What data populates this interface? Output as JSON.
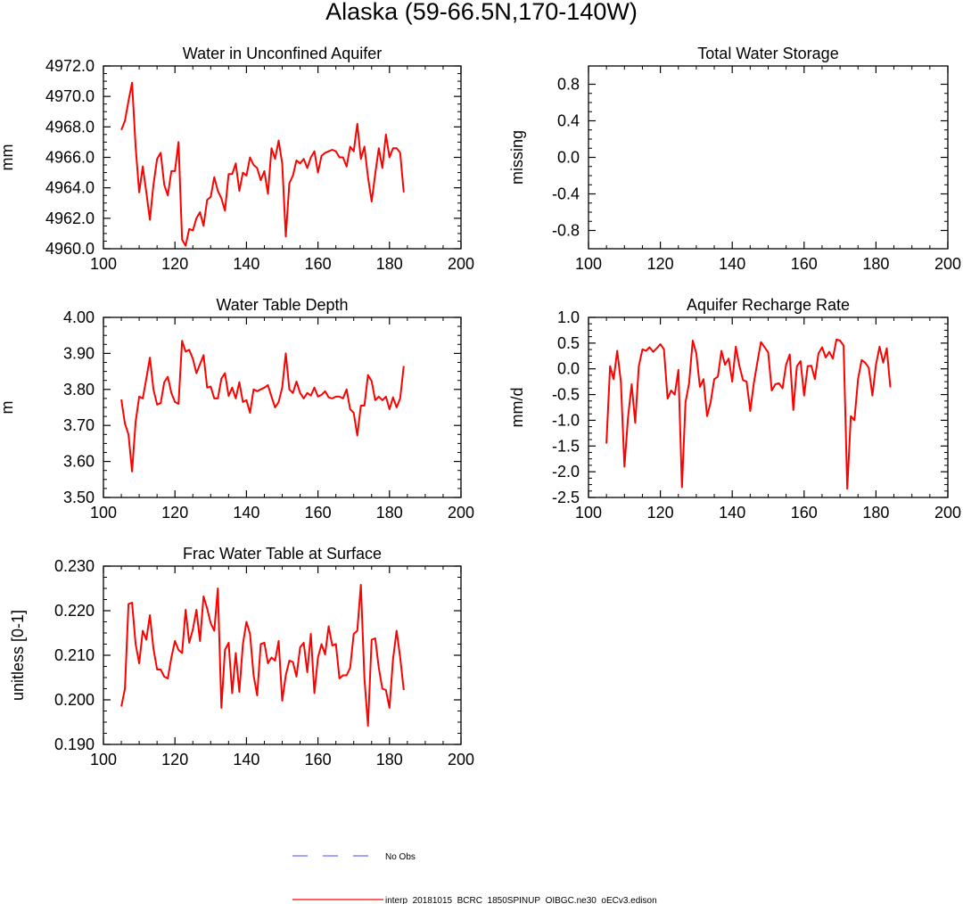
{
  "page_title": "Alaska (59-66.5N,170-140W)",
  "colors": {
    "model": "#ff0000",
    "obs": "#6b6bff",
    "axis": "#000000"
  },
  "legend": {
    "obs_label": "No Obs",
    "model_label": "interp_20181015_BCRC_1850SPINUP_OIBGC.ne30_oECv3.edison"
  },
  "chart_data": [
    {
      "id": "water-in-unconfined-aquifer",
      "type": "line",
      "title": "Water in Unconfined Aquifer",
      "xlabel": "",
      "ylabel": "mm",
      "xlim": [
        100,
        200
      ],
      "ylim": [
        4960.0,
        4972.0
      ],
      "xticks": [
        100,
        120,
        140,
        160,
        180,
        200
      ],
      "xtick_labels": [
        "100",
        "120",
        "140",
        "160",
        "180",
        "200"
      ],
      "yticks": [
        4960,
        4962,
        4964,
        4966,
        4968,
        4970,
        4972
      ],
      "ytick_labels": [
        "4960.0",
        "4962.0",
        "4964.0",
        "4966.0",
        "4968.0",
        "4970.0",
        "4972.0"
      ],
      "series": [
        {
          "name": "interp_20181015_BCRC_1850SPINUP_OIBGC.ne30_oECv3.edison",
          "x": [
            105,
            106,
            107,
            108,
            109,
            110,
            111,
            112,
            113,
            114,
            115,
            116,
            117,
            118,
            119,
            120,
            121,
            122,
            123,
            124,
            125,
            126,
            127,
            128,
            129,
            130,
            131,
            132,
            133,
            134,
            135,
            136,
            137,
            138,
            139,
            140,
            141,
            142,
            143,
            144,
            145,
            146,
            147,
            148,
            149,
            150,
            151,
            152,
            153,
            154,
            155,
            156,
            157,
            158,
            159,
            160,
            161,
            162,
            163,
            164,
            165,
            166,
            167,
            168,
            169,
            170,
            171,
            172,
            173,
            174,
            175,
            176,
            177,
            178,
            179,
            180,
            181,
            182,
            183,
            184
          ],
          "values": [
            4967.8,
            4968.4,
            4969.7,
            4970.9,
            4966.7,
            4963.7,
            4965.4,
            4963.7,
            4961.9,
            4964.2,
            4965.9,
            4966.3,
            4964.2,
            4963.5,
            4965.1,
            4965.1,
            4967.0,
            4960.6,
            4960.2,
            4961.3,
            4961.2,
            4962.0,
            4962.4,
            4961.5,
            4963.2,
            4963.4,
            4964.7,
            4963.8,
            4963.3,
            4962.5,
            4964.9,
            4964.9,
            4965.6,
            4963.8,
            4965.0,
            4964.8,
            4966.0,
            4965.5,
            4965.3,
            4964.5,
            4965.1,
            4963.6,
            4966.6,
            4965.9,
            4967.1,
            4965.6,
            4960.8,
            4964.3,
            4964.8,
            4965.8,
            4965.6,
            4965.9,
            4965.3,
            4966.0,
            4966.4,
            4965.0,
            4966.1,
            4966.3,
            4966.4,
            4966.5,
            4966.4,
            4966.0,
            4966.0,
            4965.4,
            4966.7,
            4966.4,
            4968.2,
            4965.9,
            4966.7,
            4964.7,
            4963.1,
            4964.9,
            4966.6,
            4965.3,
            4967.5,
            4966.0,
            4966.6,
            4966.6,
            4966.3,
            4963.7
          ]
        }
      ]
    },
    {
      "id": "total-water-storage",
      "type": "line",
      "title": "Total Water Storage",
      "xlabel": "",
      "ylabel": "missing",
      "xlim": [
        100,
        200
      ],
      "ylim": [
        -1.0,
        1.0
      ],
      "xticks": [
        100,
        120,
        140,
        160,
        180,
        200
      ],
      "xtick_labels": [
        "100",
        "120",
        "140",
        "160",
        "180",
        "200"
      ],
      "yticks": [
        -0.8,
        -0.4,
        0.0,
        0.4,
        0.8
      ],
      "ytick_labels": [
        "-0.8",
        "-0.4",
        "0.0",
        "0.4",
        "0.8"
      ],
      "series": []
    },
    {
      "id": "water-table-depth",
      "type": "line",
      "title": "Water Table Depth",
      "xlabel": "",
      "ylabel": "m",
      "xlim": [
        100,
        200
      ],
      "ylim": [
        3.5,
        4.0
      ],
      "xticks": [
        100,
        120,
        140,
        160,
        180,
        200
      ],
      "xtick_labels": [
        "100",
        "120",
        "140",
        "160",
        "180",
        "200"
      ],
      "yticks": [
        3.5,
        3.6,
        3.7,
        3.8,
        3.9,
        4.0
      ],
      "ytick_labels": [
        "3.50",
        "3.60",
        "3.70",
        "3.80",
        "3.90",
        "4.00"
      ],
      "series": [
        {
          "name": "interp_20181015_BCRC_1850SPINUP_OIBGC.ne30_oECv3.edison",
          "x": [
            105,
            106,
            107,
            108,
            109,
            110,
            111,
            112,
            113,
            114,
            115,
            116,
            117,
            118,
            119,
            120,
            121,
            122,
            123,
            124,
            125,
            126,
            127,
            128,
            129,
            130,
            131,
            132,
            133,
            134,
            135,
            136,
            137,
            138,
            139,
            140,
            141,
            142,
            143,
            144,
            145,
            146,
            147,
            148,
            149,
            150,
            151,
            152,
            153,
            154,
            155,
            156,
            157,
            158,
            159,
            160,
            161,
            162,
            163,
            164,
            165,
            166,
            167,
            168,
            169,
            170,
            171,
            172,
            173,
            174,
            175,
            176,
            177,
            178,
            179,
            180,
            181,
            182,
            183,
            184
          ],
          "values": [
            3.772,
            3.705,
            3.675,
            3.572,
            3.71,
            3.78,
            3.775,
            3.83,
            3.888,
            3.8,
            3.758,
            3.762,
            3.82,
            3.835,
            3.79,
            3.765,
            3.76,
            3.935,
            3.905,
            3.91,
            3.885,
            3.845,
            3.87,
            3.895,
            3.805,
            3.808,
            3.775,
            3.775,
            3.83,
            3.845,
            3.782,
            3.805,
            3.775,
            3.82,
            3.765,
            3.77,
            3.735,
            3.8,
            3.795,
            3.8,
            3.805,
            3.812,
            3.78,
            3.75,
            3.765,
            3.805,
            3.9,
            3.8,
            3.79,
            3.822,
            3.79,
            3.775,
            3.79,
            3.783,
            3.805,
            3.78,
            3.785,
            3.795,
            3.778,
            3.775,
            3.78,
            3.78,
            3.775,
            3.8,
            3.745,
            3.735,
            3.672,
            3.755,
            3.755,
            3.84,
            3.823,
            3.77,
            3.78,
            3.77,
            3.78,
            3.745,
            3.778,
            3.75,
            3.775,
            3.865
          ]
        }
      ]
    },
    {
      "id": "aquifer-recharge-rate",
      "type": "line",
      "title": "Aquifer Recharge Rate",
      "xlabel": "",
      "ylabel": "mm/d",
      "xlim": [
        100,
        200
      ],
      "ylim": [
        -2.5,
        1.0
      ],
      "xticks": [
        100,
        120,
        140,
        160,
        180,
        200
      ],
      "xtick_labels": [
        "100",
        "120",
        "140",
        "160",
        "180",
        "200"
      ],
      "yticks": [
        -2.5,
        -2.0,
        -1.5,
        -1.0,
        -0.5,
        0.0,
        0.5,
        1.0
      ],
      "ytick_labels": [
        "-2.5",
        "-2.0",
        "-1.5",
        "-1.0",
        "-0.5",
        "0.0",
        "0.5",
        "1.0"
      ],
      "series": [
        {
          "name": "interp_20181015_BCRC_1850SPINUP_OIBGC.ne30_oECv3.edison",
          "x": [
            105,
            106,
            107,
            108,
            109,
            110,
            111,
            112,
            113,
            114,
            115,
            116,
            117,
            118,
            119,
            120,
            121,
            122,
            123,
            124,
            125,
            126,
            127,
            128,
            129,
            130,
            131,
            132,
            133,
            134,
            135,
            136,
            137,
            138,
            139,
            140,
            141,
            142,
            143,
            144,
            145,
            146,
            147,
            148,
            149,
            150,
            151,
            152,
            153,
            154,
            155,
            156,
            157,
            158,
            159,
            160,
            161,
            162,
            163,
            164,
            165,
            166,
            167,
            168,
            169,
            170,
            171,
            172,
            173,
            174,
            175,
            176,
            177,
            178,
            179,
            180,
            181,
            182,
            183,
            184
          ],
          "values": [
            -1.45,
            0.05,
            -0.2,
            0.35,
            -0.25,
            -1.9,
            -0.95,
            -0.3,
            -1.05,
            0.05,
            0.38,
            0.35,
            0.42,
            0.33,
            0.4,
            0.48,
            0.38,
            -0.58,
            -0.42,
            -0.5,
            -0.02,
            -2.3,
            -0.65,
            -0.28,
            0.55,
            0.3,
            -0.35,
            -0.2,
            -0.92,
            -0.65,
            -0.2,
            -0.15,
            0.35,
            0.08,
            0.2,
            -0.25,
            0.43,
            0.05,
            -0.22,
            -0.25,
            -0.82,
            -0.28,
            0.13,
            0.52,
            0.42,
            0.32,
            -0.42,
            -0.3,
            -0.28,
            -0.38,
            0.08,
            0.28,
            -0.8,
            0.05,
            0.15,
            -0.52,
            0.05,
            0.06,
            -0.2,
            0.3,
            0.42,
            0.22,
            0.33,
            0.2,
            0.57,
            0.55,
            0.45,
            -2.33,
            -0.92,
            -1.0,
            -0.2,
            0.17,
            0.12,
            0.02,
            -0.52,
            0.08,
            0.43,
            0.12,
            0.4,
            -0.36
          ]
        }
      ]
    },
    {
      "id": "frac-water-table-at-surface",
      "type": "line",
      "title": "Frac Water Table at Surface",
      "xlabel": "",
      "ylabel": "unitless [0-1]",
      "xlim": [
        100,
        200
      ],
      "ylim": [
        0.19,
        0.23
      ],
      "xticks": [
        100,
        120,
        140,
        160,
        180,
        200
      ],
      "xtick_labels": [
        "100",
        "120",
        "140",
        "160",
        "180",
        "200"
      ],
      "yticks": [
        0.19,
        0.2,
        0.21,
        0.22,
        0.23
      ],
      "ytick_labels": [
        "0.190",
        "0.200",
        "0.210",
        "0.220",
        "0.230"
      ],
      "series": [
        {
          "name": "interp_20181015_BCRC_1850SPINUP_OIBGC.ne30_oECv3.edison",
          "x": [
            105,
            106,
            107,
            108,
            109,
            110,
            111,
            112,
            113,
            114,
            115,
            116,
            117,
            118,
            119,
            120,
            121,
            122,
            123,
            124,
            125,
            126,
            127,
            128,
            129,
            130,
            131,
            132,
            133,
            134,
            135,
            136,
            137,
            138,
            139,
            140,
            141,
            142,
            143,
            144,
            145,
            146,
            147,
            148,
            149,
            150,
            151,
            152,
            153,
            154,
            155,
            156,
            157,
            158,
            159,
            160,
            161,
            162,
            163,
            164,
            165,
            166,
            167,
            168,
            169,
            170,
            171,
            172,
            173,
            174,
            175,
            176,
            177,
            178,
            179,
            180,
            181,
            182,
            183,
            184
          ],
          "values": [
            0.1985,
            0.2025,
            0.2215,
            0.2218,
            0.2125,
            0.2082,
            0.2155,
            0.2135,
            0.219,
            0.2115,
            0.2068,
            0.2068,
            0.2052,
            0.2048,
            0.2095,
            0.2132,
            0.2112,
            0.2105,
            0.2202,
            0.2128,
            0.2158,
            0.2202,
            0.2132,
            0.2232,
            0.2205,
            0.2172,
            0.2155,
            0.225,
            0.1982,
            0.2112,
            0.2128,
            0.2015,
            0.2105,
            0.2018,
            0.2125,
            0.2175,
            0.2148,
            0.2055,
            0.201,
            0.2125,
            0.2128,
            0.2082,
            0.2095,
            0.2088,
            0.2132,
            0.1998,
            0.2055,
            0.2088,
            0.2085,
            0.2052,
            0.2118,
            0.2128,
            0.2062,
            0.2148,
            0.2015,
            0.2095,
            0.2125,
            0.2102,
            0.2165,
            0.2122,
            0.2125,
            0.2048,
            0.2055,
            0.2055,
            0.2072,
            0.2148,
            0.2155,
            0.2258,
            0.2048,
            0.1942,
            0.2135,
            0.2138,
            0.2072,
            0.2025,
            0.2022,
            0.1982,
            0.2092,
            0.2155,
            0.2095,
            0.2022
          ]
        }
      ]
    }
  ]
}
